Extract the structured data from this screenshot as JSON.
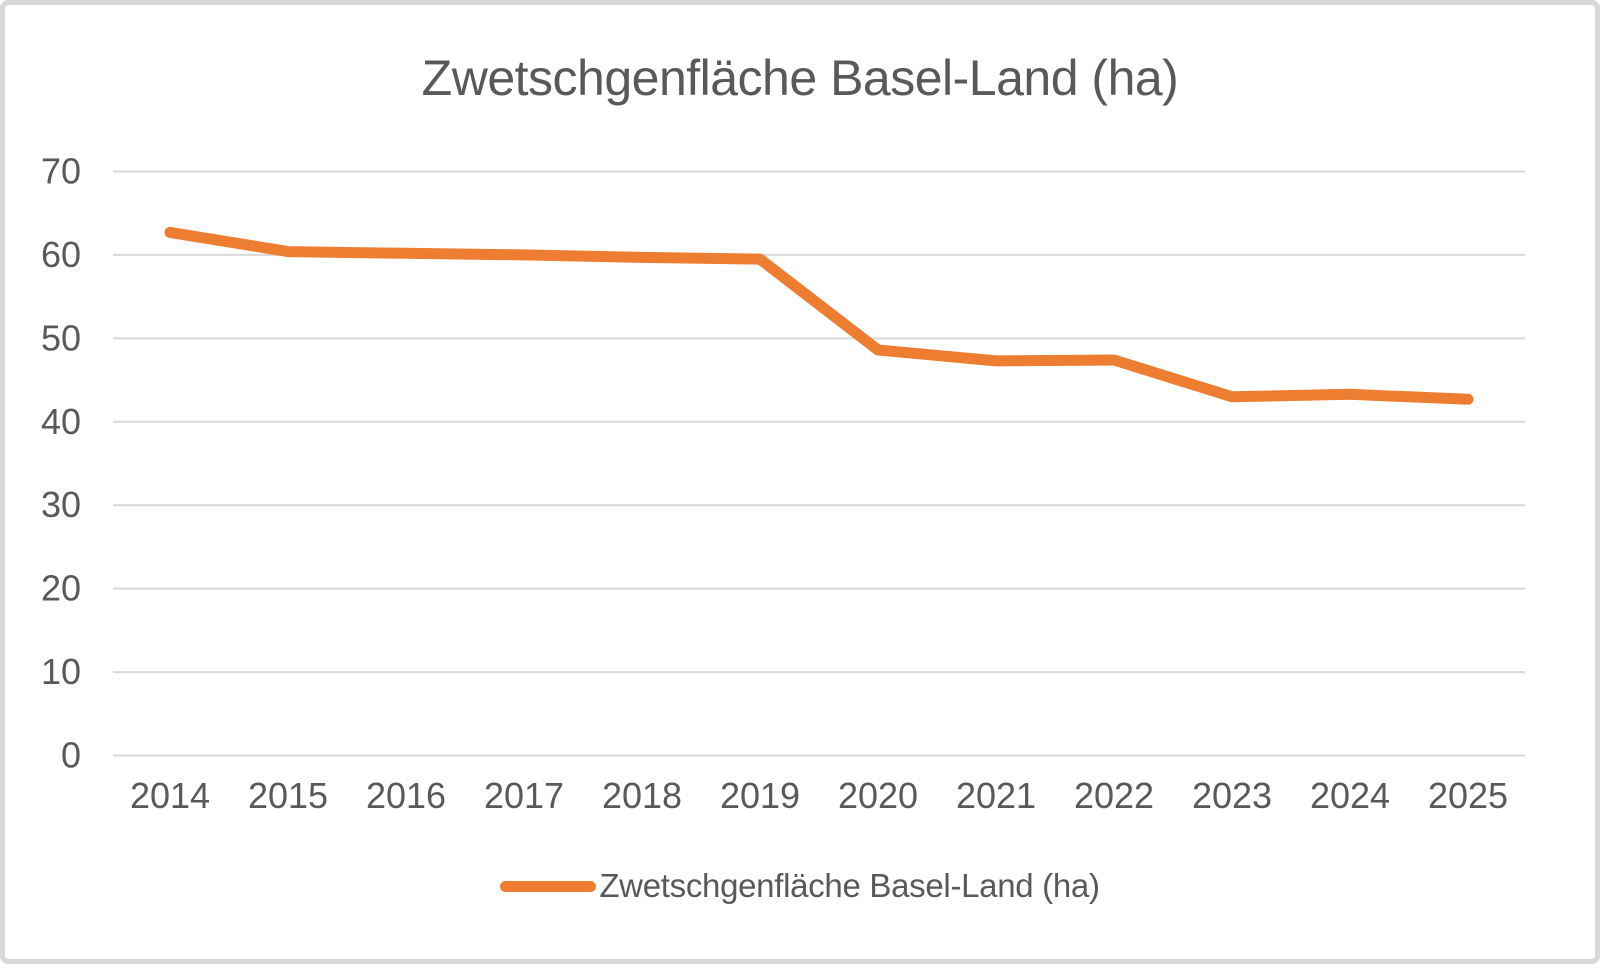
{
  "chart_data": {
    "type": "line",
    "title": "Zwetschgenfläche Basel-Land (ha)",
    "categories": [
      "2014",
      "2015",
      "2016",
      "2017",
      "2018",
      "2019",
      "2020",
      "2021",
      "2022",
      "2023",
      "2024",
      "2025"
    ],
    "series": [
      {
        "name": "Zwetschgenfläche Basel-Land (ha)",
        "values": [
          62.7,
          60.4,
          60.2,
          60.0,
          59.7,
          59.5,
          48.6,
          47.3,
          47.4,
          43.0,
          43.3,
          42.7
        ]
      }
    ],
    "xlabel": "",
    "ylabel": "",
    "ylim": [
      0,
      70
    ],
    "ytick_step": 10,
    "ytick_labels": [
      "0",
      "10",
      "20",
      "30",
      "40",
      "50",
      "60",
      "70"
    ],
    "grid": "horizontal",
    "legend_position": "bottom"
  },
  "colors": {
    "line": "#ED7D31",
    "text": "#595959",
    "gridline": "#D9D9D9",
    "frame_border": "#D8D8D8",
    "background": "#FFFFFF"
  },
  "legend": {
    "label": "Zwetschgenfläche Basel-Land (ha)"
  }
}
